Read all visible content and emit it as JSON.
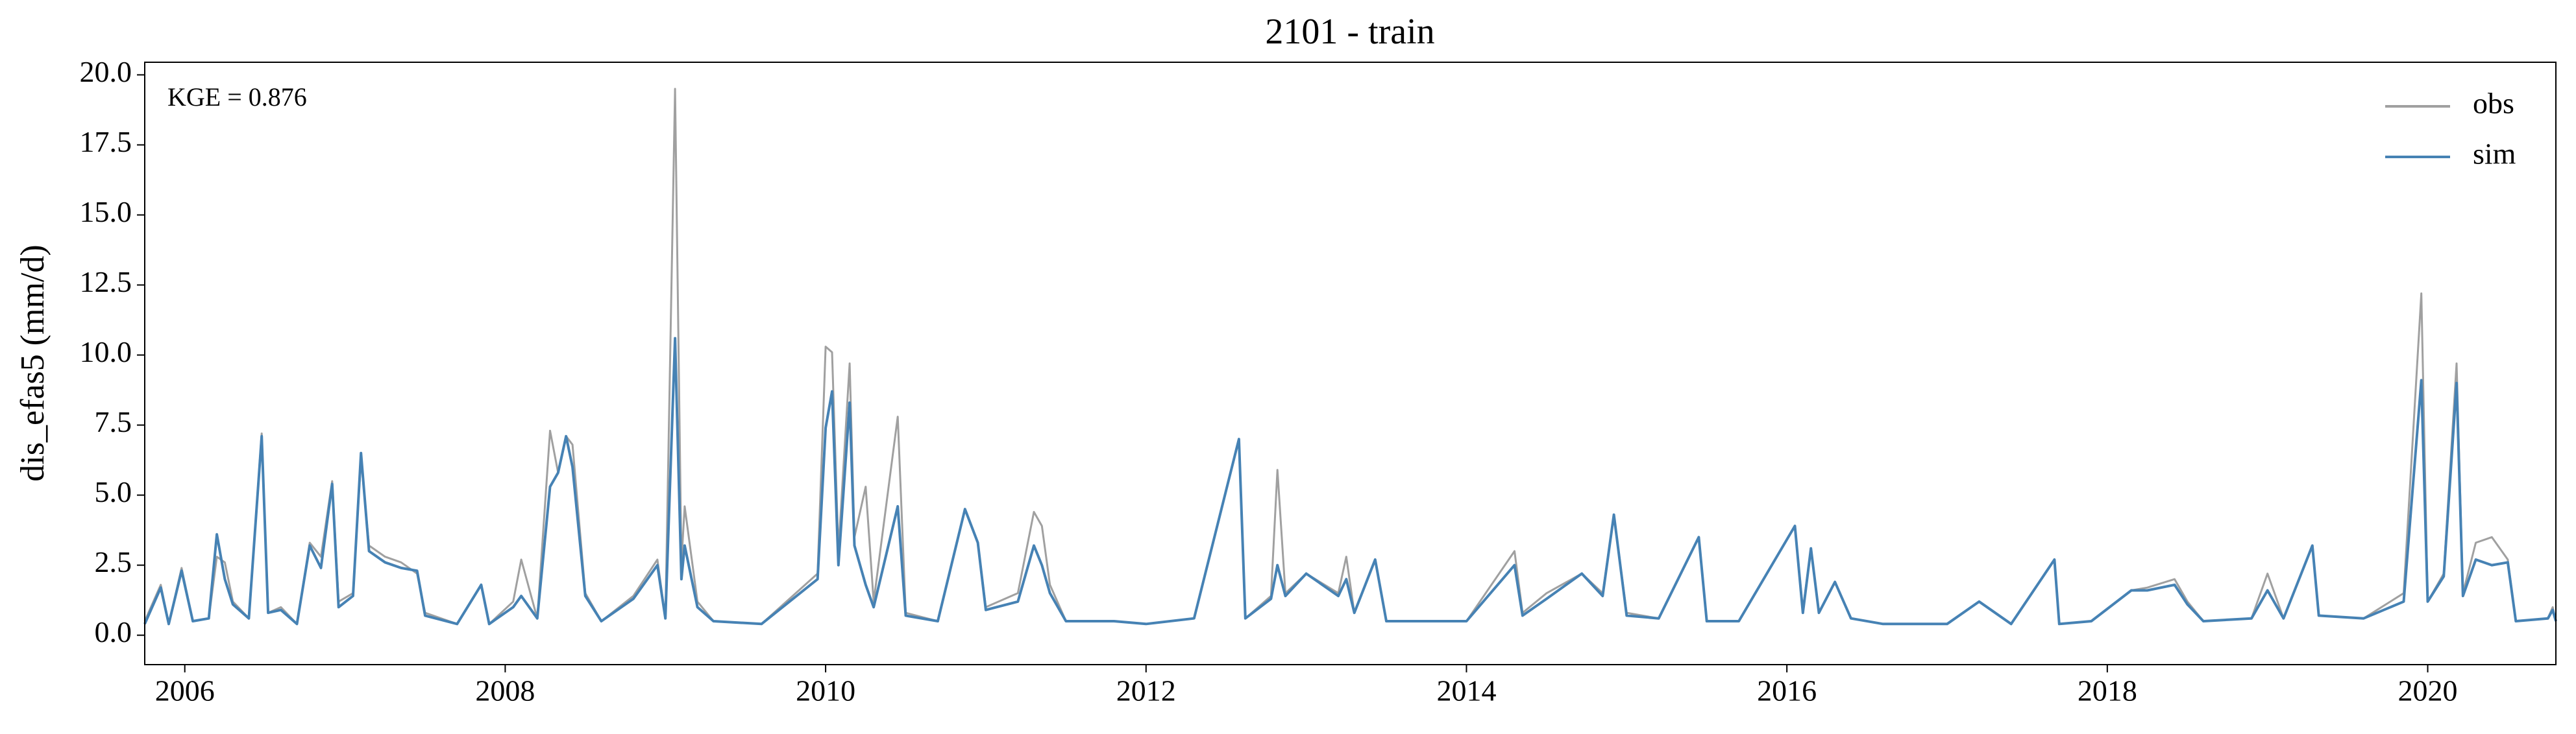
{
  "chart_data": {
    "type": "line",
    "title": "2101 - train",
    "ylabel": "dis_efas5 (mm/d)",
    "annotation": "KGE = 0.876",
    "x": [
      2005.75,
      2005.85,
      2005.9,
      2005.98,
      2006.05,
      2006.15,
      2006.2,
      2006.25,
      2006.3,
      2006.4,
      2006.48,
      2006.52,
      2006.6,
      2006.7,
      2006.78,
      2006.85,
      2006.92,
      2006.96,
      2007.05,
      2007.1,
      2007.15,
      2007.25,
      2007.35,
      2007.45,
      2007.5,
      2007.7,
      2007.85,
      2007.9,
      2008.05,
      2008.1,
      2008.2,
      2008.28,
      2008.33,
      2008.38,
      2008.42,
      2008.5,
      2008.6,
      2008.8,
      2008.95,
      2009.0,
      2009.06,
      2009.1,
      2009.12,
      2009.2,
      2009.3,
      2009.6,
      2009.95,
      2010.0,
      2010.04,
      2010.08,
      2010.15,
      2010.18,
      2010.25,
      2010.3,
      2010.45,
      2010.5,
      2010.7,
      2010.87,
      2010.95,
      2011.0,
      2011.2,
      2011.3,
      2011.35,
      2011.4,
      2011.5,
      2011.8,
      2012.0,
      2012.3,
      2012.58,
      2012.62,
      2012.78,
      2012.82,
      2012.87,
      2013.0,
      2013.2,
      2013.25,
      2013.3,
      2013.43,
      2013.5,
      2013.8,
      2014.0,
      2014.3,
      2014.35,
      2014.5,
      2014.72,
      2014.85,
      2014.92,
      2015.0,
      2015.2,
      2015.45,
      2015.5,
      2015.7,
      2016.05,
      2016.1,
      2016.15,
      2016.2,
      2016.3,
      2016.4,
      2016.6,
      2017.0,
      2017.2,
      2017.4,
      2017.67,
      2017.7,
      2017.9,
      2018.15,
      2018.25,
      2018.42,
      2018.5,
      2018.6,
      2018.9,
      2019.0,
      2019.1,
      2019.28,
      2019.32,
      2019.6,
      2019.85,
      2019.96,
      2020.0,
      2020.1,
      2020.18,
      2020.22,
      2020.3,
      2020.4,
      2020.5,
      2020.55,
      2020.75,
      2020.78,
      2020.8
    ],
    "series": [
      {
        "name": "obs",
        "color": "#a0a0a0",
        "values": [
          0.5,
          1.8,
          0.4,
          2.4,
          0.5,
          0.6,
          2.8,
          2.6,
          1.2,
          0.6,
          7.2,
          0.8,
          1.0,
          0.4,
          3.3,
          2.8,
          5.5,
          1.2,
          1.5,
          6.3,
          3.2,
          2.8,
          2.6,
          2.2,
          0.8,
          0.4,
          1.8,
          0.4,
          1.2,
          2.7,
          0.6,
          7.3,
          5.8,
          7.1,
          6.8,
          1.5,
          0.5,
          1.4,
          2.7,
          0.6,
          19.5,
          2.6,
          4.6,
          1.2,
          0.5,
          0.4,
          2.2,
          10.3,
          10.1,
          3.0,
          9.7,
          3.5,
          5.3,
          1.2,
          7.8,
          0.8,
          0.5,
          4.5,
          3.3,
          1.0,
          1.5,
          4.4,
          3.9,
          1.8,
          0.5,
          0.5,
          0.4,
          0.6,
          7.0,
          0.6,
          1.4,
          5.9,
          1.5,
          2.2,
          1.5,
          2.8,
          0.8,
          2.7,
          0.5,
          0.5,
          0.5,
          3.0,
          0.8,
          1.5,
          2.2,
          1.5,
          4.3,
          0.8,
          0.6,
          3.5,
          0.5,
          0.5,
          3.9,
          0.9,
          3.1,
          0.8,
          1.9,
          0.6,
          0.4,
          0.4,
          1.2,
          0.4,
          2.7,
          0.4,
          0.5,
          1.6,
          1.7,
          2.0,
          1.2,
          0.5,
          0.6,
          2.2,
          0.6,
          3.2,
          0.7,
          0.6,
          1.5,
          12.2,
          1.2,
          2.2,
          9.7,
          1.5,
          3.3,
          3.5,
          2.7,
          0.5,
          0.6,
          1.0,
          0.5
        ]
      },
      {
        "name": "sim",
        "color": "#4682b4",
        "values": [
          0.4,
          1.7,
          0.4,
          2.3,
          0.5,
          0.6,
          3.6,
          2.0,
          1.1,
          0.6,
          7.1,
          0.8,
          0.9,
          0.4,
          3.2,
          2.4,
          5.4,
          1.0,
          1.4,
          6.5,
          3.0,
          2.6,
          2.4,
          2.3,
          0.7,
          0.4,
          1.8,
          0.4,
          1.0,
          1.4,
          0.6,
          5.3,
          5.8,
          7.1,
          6.0,
          1.4,
          0.5,
          1.3,
          2.5,
          0.6,
          10.6,
          2.0,
          3.2,
          1.0,
          0.5,
          0.4,
          2.0,
          7.4,
          8.7,
          2.5,
          8.3,
          3.2,
          1.8,
          1.0,
          4.6,
          0.7,
          0.5,
          4.5,
          3.3,
          0.9,
          1.2,
          3.2,
          2.5,
          1.5,
          0.5,
          0.5,
          0.4,
          0.6,
          7.0,
          0.6,
          1.3,
          2.5,
          1.4,
          2.2,
          1.4,
          2.0,
          0.8,
          2.7,
          0.5,
          0.5,
          0.5,
          2.5,
          0.7,
          1.3,
          2.2,
          1.4,
          4.3,
          0.7,
          0.6,
          3.5,
          0.5,
          0.5,
          3.9,
          0.8,
          3.1,
          0.8,
          1.9,
          0.6,
          0.4,
          0.4,
          1.2,
          0.4,
          2.7,
          0.4,
          0.5,
          1.6,
          1.6,
          1.8,
          1.1,
          0.5,
          0.6,
          1.6,
          0.6,
          3.2,
          0.7,
          0.6,
          1.2,
          9.1,
          1.2,
          2.1,
          9.0,
          1.4,
          2.7,
          2.5,
          2.6,
          0.5,
          0.6,
          0.9,
          0.5
        ]
      }
    ],
    "xlim": [
      2005.75,
      2020.8
    ],
    "xticks": [
      2006,
      2008,
      2010,
      2012,
      2014,
      2016,
      2018,
      2020
    ],
    "ylim": [
      -1.05,
      20.45
    ],
    "yticks": [
      {
        "value": 0,
        "label": "0.0"
      },
      {
        "value": 2.5,
        "label": "2.5"
      },
      {
        "value": 5,
        "label": "5.0"
      },
      {
        "value": 7.5,
        "label": "7.5"
      },
      {
        "value": 10,
        "label": "10.0"
      },
      {
        "value": 12.5,
        "label": "12.5"
      },
      {
        "value": 15,
        "label": "15.0"
      },
      {
        "value": 17.5,
        "label": "17.5"
      },
      {
        "value": 20,
        "label": "20.0"
      }
    ],
    "legend": "upper right",
    "grid": false
  }
}
